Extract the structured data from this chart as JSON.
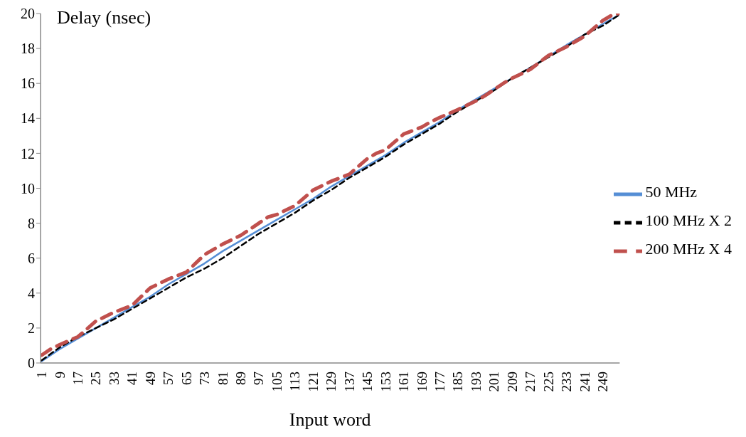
{
  "chart_data": {
    "type": "line",
    "xlabel": "Input word",
    "ylabel": "Delay (nsec)",
    "xlim": [
      0.5,
      256.5
    ],
    "xticks": [
      1,
      9,
      17,
      25,
      33,
      41,
      49,
      57,
      65,
      73,
      81,
      89,
      97,
      105,
      113,
      121,
      129,
      137,
      145,
      153,
      161,
      169,
      177,
      185,
      193,
      201,
      209,
      217,
      225,
      233,
      241,
      249
    ],
    "ylim": [
      0,
      20
    ],
    "yticks": [
      0,
      2,
      4,
      6,
      8,
      10,
      12,
      14,
      16,
      18,
      20
    ],
    "legend": "right",
    "series": [
      {
        "name": "50 MHz",
        "color": "#558ed5",
        "line_style": "solid",
        "x": [
          1,
          9,
          17,
          25,
          33,
          41,
          49,
          57,
          65,
          73,
          81,
          89,
          97,
          105,
          113,
          121,
          129,
          137,
          145,
          153,
          161,
          169,
          177,
          185,
          193,
          201,
          209,
          217,
          225,
          233,
          241,
          249,
          256
        ],
        "values": [
          0.1,
          0.8,
          1.4,
          2.0,
          2.6,
          3.2,
          3.8,
          4.5,
          5.1,
          5.7,
          6.4,
          7.0,
          7.6,
          8.2,
          8.8,
          9.4,
          10.1,
          10.7,
          11.3,
          11.9,
          12.6,
          13.2,
          13.8,
          14.5,
          15.1,
          15.7,
          16.3,
          16.9,
          null,
          18.2,
          18.8,
          19.4,
          19.9
        ]
      },
      {
        "name": "100 MHz X 2",
        "color": "#000000",
        "line_style": "dashed",
        "x": [
          1,
          9,
          17,
          25,
          33,
          41,
          49,
          57,
          65,
          73,
          81,
          89,
          97,
          105,
          113,
          121,
          129,
          137,
          145,
          153,
          161,
          169,
          177,
          185,
          193,
          201,
          209,
          217,
          225,
          233,
          241,
          249,
          256
        ],
        "values": [
          0.15,
          0.9,
          1.5,
          2.0,
          2.5,
          3.1,
          3.7,
          4.3,
          4.9,
          5.4,
          6.0,
          6.7,
          7.4,
          8.0,
          8.6,
          9.3,
          9.9,
          10.6,
          11.2,
          11.8,
          12.5,
          13.1,
          13.7,
          14.4,
          15.0,
          15.6,
          16.3,
          16.9,
          17.5,
          18.1,
          18.8,
          19.3,
          19.9
        ]
      },
      {
        "name": "200 MHz X 4",
        "color": "#c0504d",
        "line_style": "dashed",
        "x": [
          1,
          5,
          9,
          17,
          25,
          29,
          33,
          41,
          49,
          53,
          57,
          65,
          73,
          77,
          81,
          89,
          97,
          101,
          105,
          113,
          121,
          125,
          129,
          137,
          145,
          149,
          153,
          161,
          169,
          173,
          177,
          185,
          193,
          197,
          201,
          205,
          209,
          217,
          225,
          229,
          233,
          241,
          249,
          253,
          256
        ],
        "values": [
          0.45,
          0.8,
          1.05,
          1.5,
          2.4,
          2.65,
          2.9,
          3.3,
          4.3,
          4.55,
          4.8,
          5.2,
          6.2,
          6.5,
          6.8,
          7.3,
          8.0,
          8.35,
          8.5,
          9.0,
          9.9,
          10.15,
          10.4,
          10.8,
          11.7,
          12.0,
          12.2,
          13.1,
          13.5,
          13.8,
          14.05,
          14.5,
          15.0,
          15.3,
          15.65,
          16.0,
          16.3,
          16.8,
          17.6,
          17.85,
          18.1,
          18.7,
          19.6,
          19.9,
          20.0
        ]
      }
    ]
  }
}
